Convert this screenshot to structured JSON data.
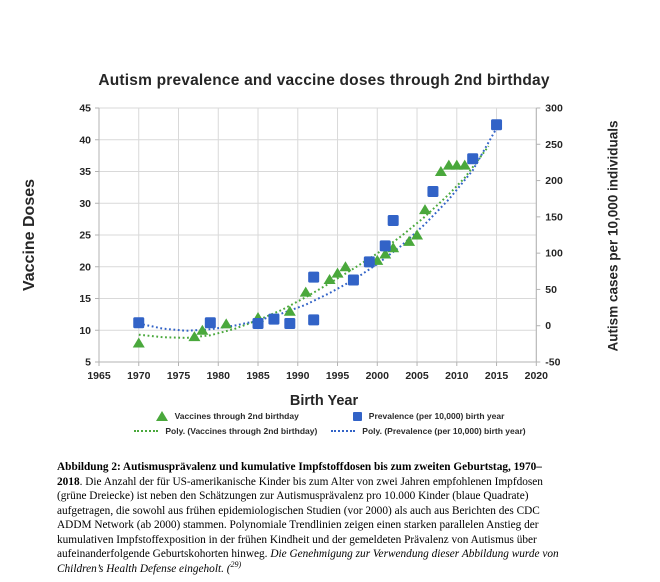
{
  "chart_data": {
    "type": "scatter",
    "title": "Autism prevalence and vaccine doses through 2nd birthday",
    "xlabel": "Birth Year",
    "ylabel_left": "Vaccine Doses",
    "ylabel_right": "Autism cases per 10,000 individuals",
    "x_range": [
      1965,
      2020
    ],
    "x_step": 5,
    "y_left_range": [
      5,
      45
    ],
    "y_left_step": 5,
    "y_right_range": [
      -50,
      300
    ],
    "y_right_step": 50,
    "grid": true,
    "legend_position": "bottom",
    "colors": {
      "vaccines": "#4aa83c",
      "prevalence": "#3263c7",
      "grid": "#d9d9d9",
      "axis": "#b3b3b3",
      "text": "#262626"
    },
    "series": [
      {
        "name": "Vaccines through 2nd birthday",
        "data_name": "vaccines-points",
        "axis": "left",
        "marker": "triangle",
        "color_key": "vaccines",
        "points": [
          [
            1970,
            8
          ],
          [
            1977,
            9
          ],
          [
            1978,
            10
          ],
          [
            1981,
            11
          ],
          [
            1985,
            12
          ],
          [
            1989,
            13
          ],
          [
            1991,
            16
          ],
          [
            1994,
            18
          ],
          [
            1995,
            19
          ],
          [
            1996,
            20
          ],
          [
            2000,
            21
          ],
          [
            2001,
            22
          ],
          [
            2002,
            23
          ],
          [
            2004,
            24
          ],
          [
            2005,
            25
          ],
          [
            2006,
            29
          ],
          [
            2008,
            35
          ],
          [
            2009,
            36
          ],
          [
            2010,
            36
          ],
          [
            2011,
            36
          ]
        ]
      },
      {
        "name": "Prevalence (per 10,000) birth year",
        "data_name": "prevalence-points",
        "axis": "right",
        "marker": "square",
        "color_key": "prevalence",
        "points": [
          [
            1970,
            4
          ],
          [
            1979,
            4
          ],
          [
            1985,
            3
          ],
          [
            1987,
            9
          ],
          [
            1989,
            3
          ],
          [
            1992,
            67
          ],
          [
            1992,
            8
          ],
          [
            1997,
            63
          ],
          [
            1999,
            88
          ],
          [
            2001,
            110
          ],
          [
            2002,
            145
          ],
          [
            2007,
            185
          ],
          [
            2012,
            230
          ],
          [
            2015,
            277
          ]
        ]
      },
      {
        "name": "Poly. (Vaccines through 2nd birthday)",
        "data_name": "vaccines-trend",
        "axis": "left",
        "marker": "none",
        "line": "dotted",
        "color_key": "vaccines",
        "points": [
          [
            1970,
            9.3
          ],
          [
            1973,
            8.9
          ],
          [
            1976,
            8.8
          ],
          [
            1979,
            9.2
          ],
          [
            1982,
            10.2
          ],
          [
            1985,
            11.6
          ],
          [
            1988,
            13.2
          ],
          [
            1991,
            15.2
          ],
          [
            1994,
            17.4
          ],
          [
            1997,
            19.7
          ],
          [
            2000,
            22.1
          ],
          [
            2003,
            24.8
          ],
          [
            2006,
            27.9
          ],
          [
            2009,
            31.4
          ],
          [
            2011,
            34.0
          ],
          [
            2014,
            39.0
          ]
        ]
      },
      {
        "name": "Poly. (Prevalence (per 10,000) birth year)",
        "data_name": "prevalence-trend",
        "axis": "right",
        "marker": "none",
        "line": "dotted",
        "color_key": "prevalence",
        "points": [
          [
            1970,
            3
          ],
          [
            1973,
            -4
          ],
          [
            1976,
            -7
          ],
          [
            1979,
            -5
          ],
          [
            1982,
            0
          ],
          [
            1985,
            7
          ],
          [
            1988,
            17
          ],
          [
            1991,
            29
          ],
          [
            1994,
            45
          ],
          [
            1997,
            63
          ],
          [
            2000,
            85
          ],
          [
            2003,
            110
          ],
          [
            2006,
            140
          ],
          [
            2009,
            174
          ],
          [
            2012,
            214
          ],
          [
            2015,
            272
          ]
        ]
      }
    ]
  },
  "caption": {
    "bold": "Abbildung 2: Autismusprävalenz und kumulative Impfstoffdosen bis zum zweiten Geburtstag, 1970–2018",
    "body": ". Die Anzahl der für US-amerikanische Kinder bis zum Alter von zwei Jahren empfohlenen Impfdosen (grüne Dreiecke) ist neben den Schätzungen zur Autismusprävalenz pro 10.000 Kinder (blaue Quadrate) aufgetragen, die sowohl aus frühen epidemiologischen Studien (vor 2000) als auch aus Berichten des CDC ADDM Network (ab 2000) stammen. Polynomiale Trendlinien zeigen einen starken parallelen Anstieg der kumulativen Impfstoffexposition in der frühen Kindheit und der gemeldeten Prävalenz von Autismus über aufeinanderfolgende Geburtskohorten hinweg. ",
    "italic": "Die Genehmigung zur Verwendung dieser Abbildung wurde von Children’s Health Defense eingeholt. (",
    "cite": "29)"
  }
}
